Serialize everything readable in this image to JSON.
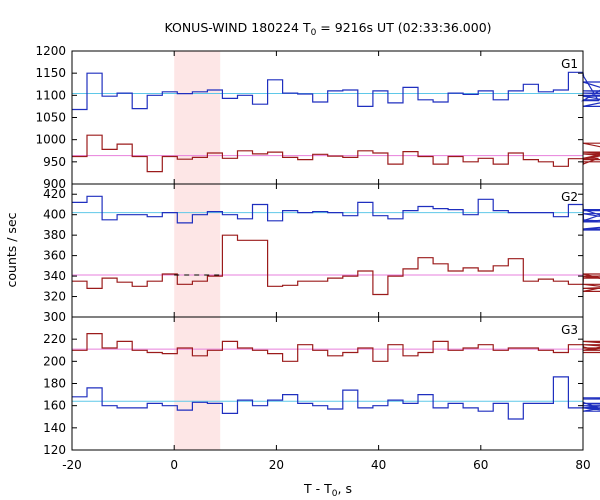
{
  "chart_data": {
    "type": "line",
    "title": "KONUS-WIND 180224 T",
    "title_sub": "0",
    "title_rest": " = 9216s UT (02:33:36.000)",
    "xlabel": "T - T",
    "xlabel_sub": "0",
    "xlabel_rest": ", s",
    "ylabel": "counts / sec",
    "xlim": [
      -20,
      80
    ],
    "x_ticks": [
      "-20",
      "0",
      "20",
      "40",
      "60",
      "80"
    ],
    "highlight_interval": [
      0,
      9
    ],
    "highlight_color": "#fde6e6",
    "bin_width": 2.944,
    "bin_start": -20,
    "panels": [
      {
        "label": "G1",
        "ylim": [
          900,
          1200
        ],
        "y_ticks": [
          "900",
          "950",
          "1000",
          "1050",
          "1100",
          "1150",
          "1200"
        ],
        "series": [
          {
            "color": "#1f2fbf",
            "background_level": 1104,
            "background_color": "#5fc8e8",
            "values": [
              1068,
              1150,
              1098,
              1105,
              1070,
              1100,
              1108,
              1104,
              1108,
              1112,
              1093,
              1100,
              1080,
              1135,
              1105,
              1103,
              1085,
              1110,
              1112,
              1075,
              1110,
              1083,
              1118,
              1090,
              1085,
              1105,
              1102,
              1110,
              1090,
              1110,
              1125,
              1108,
              1112,
              1152,
              1145,
              1088,
              1130,
              1098,
              1075,
              1110,
              1105,
              1098,
              1100,
              1090
            ]
          },
          {
            "color": "#9b1b1b",
            "background_level": 964,
            "background_color": "#e77fdc",
            "values": [
              962,
              1010,
              978,
              990,
              962,
              928,
              962,
              956,
              960,
              970,
              958,
              975,
              968,
              972,
              960,
              955,
              967,
              963,
              960,
              975,
              970,
              945,
              973,
              962,
              945,
              962,
              950,
              958,
              945,
              970,
              955,
              950,
              940,
              957,
              945,
              958,
              972,
              968,
              955,
              992,
              950,
              950
            ]
          }
        ]
      },
      {
        "label": "G2",
        "ylim": [
          300,
          430
        ],
        "y_ticks": [
          "300",
          "320",
          "340",
          "360",
          "380",
          "400",
          "420"
        ],
        "series": [
          {
            "color": "#1f2fbf",
            "background_level": 402,
            "background_color": "#5fc8e8",
            "values": [
              412,
              418,
              395,
              400,
              400,
              398,
              402,
              392,
              400,
              403,
              400,
              396,
              410,
              394,
              404,
              402,
              403,
              402,
              399,
              412,
              399,
              396,
              404,
              408,
              406,
              405,
              400,
              415,
              404,
              402,
              402,
              402,
              398,
              410,
              395,
              394,
              404,
              405,
              386,
              393,
              401,
              385
            ]
          },
          {
            "color": "#9b1b1b",
            "background_level": 341,
            "background_color": "#e77fdc",
            "values": [
              335,
              328,
              338,
              334,
              330,
              335,
              342,
              332,
              335,
              340,
              380,
              375,
              375,
              330,
              331,
              335,
              335,
              338,
              340,
              345,
              322,
              340,
              347,
              358,
              352,
              345,
              348,
              345,
              350,
              357,
              335,
              337,
              335,
              332,
              340,
              338,
              342,
              332,
              325,
              340,
              328,
              332
            ]
          }
        ]
      },
      {
        "label": "G3",
        "ylim": [
          120,
          240
        ],
        "y_ticks": [
          "120",
          "140",
          "160",
          "180",
          "200",
          "220"
        ],
        "series": [
          {
            "color": "#9b1b1b",
            "background_level": 211,
            "background_color": "#e77fdc",
            "values": [
              210,
              225,
              212,
              218,
              210,
              208,
              207,
              212,
              205,
              210,
              218,
              212,
              210,
              207,
              200,
              215,
              210,
              205,
              208,
              212,
              200,
              215,
              205,
              208,
              218,
              210,
              212,
              215,
              210,
              212,
              212,
              210,
              208,
              215,
              213,
              210,
              215,
              212,
              210,
              218,
              212,
              208
            ]
          },
          {
            "color": "#1f2fbf",
            "background_level": 164,
            "background_color": "#5fc8e8",
            "values": [
              168,
              176,
              160,
              158,
              158,
              162,
              160,
              156,
              163,
              162,
              153,
              165,
              160,
              165,
              170,
              162,
              160,
              157,
              174,
              158,
              160,
              165,
              162,
              170,
              158,
              162,
              158,
              155,
              162,
              148,
              162,
              162,
              186,
              158,
              163,
              158,
              155,
              162,
              160,
              158,
              167,
              166
            ]
          }
        ]
      }
    ]
  }
}
